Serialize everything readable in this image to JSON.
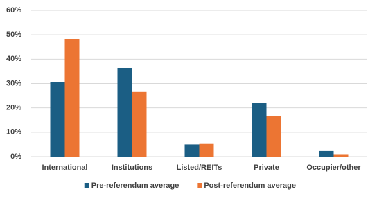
{
  "chart_data": {
    "type": "bar",
    "categories": [
      "International",
      "Institutions",
      "Listed/REITs",
      "Private",
      "Occupier/other"
    ],
    "series": [
      {
        "name": "Pre-referendum average",
        "color": "#1b5e84",
        "values": [
          30.7,
          36.4,
          5.0,
          22.0,
          2.3
        ]
      },
      {
        "name": "Post-referendum average",
        "color": "#ec7533",
        "values": [
          48.3,
          26.5,
          5.2,
          16.6,
          1.0
        ]
      }
    ],
    "ylim": [
      0,
      60
    ],
    "yticks": [
      {
        "value": 0,
        "label": "0%"
      },
      {
        "value": 10,
        "label": "10%"
      },
      {
        "value": 20,
        "label": "20%"
      },
      {
        "value": 30,
        "label": "30%"
      },
      {
        "value": 40,
        "label": "40%"
      },
      {
        "value": 50,
        "label": "50%"
      },
      {
        "value": 60,
        "label": "60%"
      }
    ],
    "grid": true,
    "legend": "bottom"
  }
}
